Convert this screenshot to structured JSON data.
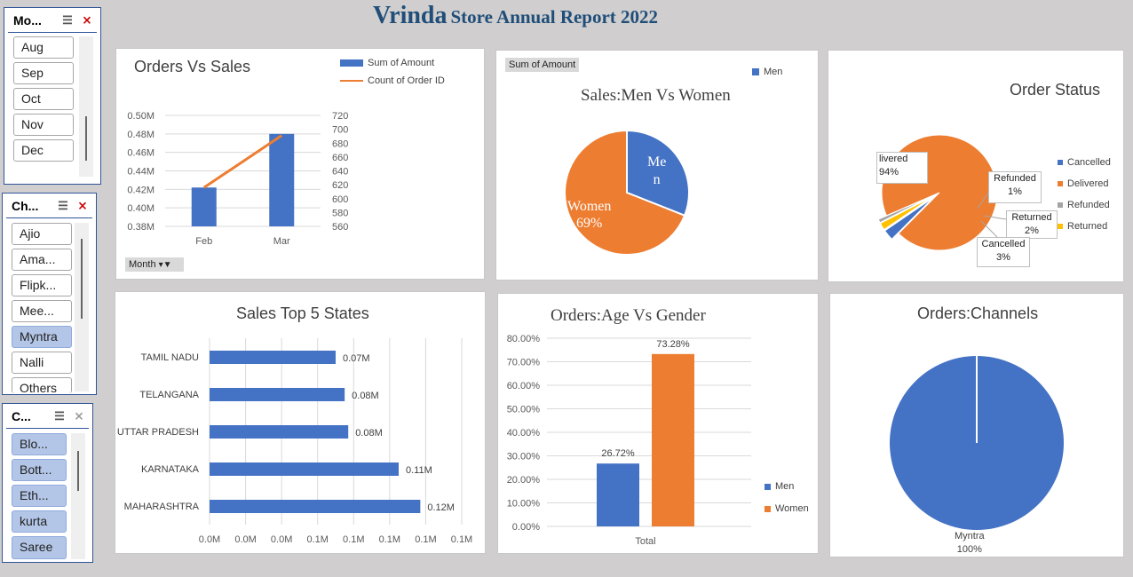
{
  "report": {
    "title_word": "Vrinda",
    "title_rest": "Store Annual Report 2022"
  },
  "slicers": {
    "month": {
      "label": "Mo...",
      "items": [
        {
          "label": "Aug"
        },
        {
          "label": "Sep"
        },
        {
          "label": "Oct"
        },
        {
          "label": "Nov"
        },
        {
          "label": "Dec"
        }
      ]
    },
    "channel": {
      "label": "Ch...",
      "items": [
        {
          "label": "Ajio"
        },
        {
          "label": "Ama..."
        },
        {
          "label": "Flipk..."
        },
        {
          "label": "Mee..."
        },
        {
          "label": "Myntra",
          "selected": true
        },
        {
          "label": "Nalli"
        },
        {
          "label": "Others"
        }
      ]
    },
    "category": {
      "label": "C...",
      "items": [
        {
          "label": "Blo...",
          "selected": true
        },
        {
          "label": "Bott...",
          "selected": true
        },
        {
          "label": "Eth...",
          "selected": true
        },
        {
          "label": "kurta",
          "selected": true
        },
        {
          "label": "Saree",
          "selected": true
        }
      ]
    },
    "icons": [
      "multi-select-icon",
      "clear-filter-icon"
    ]
  },
  "orders_vs_sales": {
    "title": "Orders Vs Sales",
    "legend": [
      "Sum of Amount",
      "Count of Order ID"
    ],
    "filter_tag": "Month",
    "chart_data": {
      "type": "bar",
      "categories": [
        "Feb",
        "Mar"
      ],
      "series": [
        {
          "name": "Sum of Amount",
          "type": "bar",
          "values": [
            0.422,
            0.48
          ],
          "color": "#4472c4"
        },
        {
          "name": "Count of Order ID",
          "type": "line",
          "values": [
            616,
            691
          ],
          "color": "#ed7d31"
        }
      ],
      "y_left_ticks": [
        "0.50M",
        "0.48M",
        "0.46M",
        "0.44M",
        "0.42M",
        "0.40M",
        "0.38M"
      ],
      "y_right_ticks": [
        "720",
        "700",
        "680",
        "660",
        "640",
        "620",
        "600",
        "580",
        "560"
      ],
      "ylim_left": [
        0.38,
        0.5
      ],
      "ylim_right": [
        560,
        720
      ]
    }
  },
  "sales_gender": {
    "title": "Sales:Men Vs Women",
    "tag": "Sum of Amount",
    "legend": [
      "Men"
    ],
    "chart_data": {
      "type": "pie",
      "slices": [
        {
          "name": "Men",
          "value": 31,
          "color": "#4472c4"
        },
        {
          "name": "Women",
          "value": 69,
          "color": "#ed7d31"
        }
      ]
    },
    "labels": {
      "men": "Me",
      "men2": "n",
      "women": "Women",
      "women_pct": "69%"
    }
  },
  "order_status": {
    "title": "Order Status",
    "legend": [
      {
        "name": "Cancelled",
        "color": "#4472c4"
      },
      {
        "name": "Delivered",
        "color": "#ed7d31"
      },
      {
        "name": "Refunded",
        "color": "#a5a5a5"
      },
      {
        "name": "Returned",
        "color": "#ffc000"
      }
    ],
    "chart_data": {
      "type": "pie",
      "slices": [
        {
          "name": "Delivered",
          "value": 94,
          "color": "#ed7d31"
        },
        {
          "name": "Cancelled",
          "value": 3,
          "color": "#4472c4"
        },
        {
          "name": "Returned",
          "value": 2,
          "color": "#ffc000"
        },
        {
          "name": "Refunded",
          "value": 1,
          "color": "#a5a5a5"
        }
      ]
    },
    "callouts": {
      "delivered": "livered",
      "delivered_pct": "94%",
      "refunded": "Refunded",
      "refunded_pct": "1%",
      "returned": "Returned",
      "returned_pct": "2%",
      "cancelled": "Cancelled",
      "cancelled_pct": "3%"
    }
  },
  "top_states": {
    "title": "Sales Top 5 States",
    "chart_data": {
      "type": "bar",
      "orientation": "horizontal",
      "categories": [
        "TAMIL NADU",
        "TELANGANA",
        "UTTAR PRADESH",
        "KARNATAKA",
        "MAHARASHTRA"
      ],
      "values": [
        0.07,
        0.075,
        0.077,
        0.105,
        0.117
      ],
      "data_labels": [
        "0.07M",
        "0.08M",
        "0.08M",
        "0.11M",
        "0.12M"
      ],
      "x_ticks": [
        "0.0M",
        "0.0M",
        "0.0M",
        "0.1M",
        "0.1M",
        "0.1M",
        "0.1M",
        "0.1M"
      ],
      "xlim": [
        0,
        0.14
      ]
    }
  },
  "age_gender": {
    "title": "Orders:Age Vs Gender",
    "legend": [
      "Men",
      "Women"
    ],
    "chart_data": {
      "type": "bar",
      "categories": [
        "Total"
      ],
      "series": [
        {
          "name": "Men",
          "values": [
            26.72
          ],
          "color": "#4472c4"
        },
        {
          "name": "Women",
          "values": [
            73.28
          ],
          "color": "#ed7d31"
        }
      ],
      "data_labels": [
        "26.72%",
        "73.28%"
      ],
      "y_ticks": [
        "80.00%",
        "70.00%",
        "60.00%",
        "50.00%",
        "40.00%",
        "30.00%",
        "20.00%",
        "10.00%",
        "0.00%"
      ],
      "ylim": [
        0,
        80
      ]
    }
  },
  "channels": {
    "title": "Orders:Channels",
    "chart_data": {
      "type": "pie",
      "slices": [
        {
          "name": "Myntra",
          "value": 100,
          "color": "#4472c4"
        }
      ]
    },
    "label": "Myntra",
    "label_pct": "100%"
  }
}
